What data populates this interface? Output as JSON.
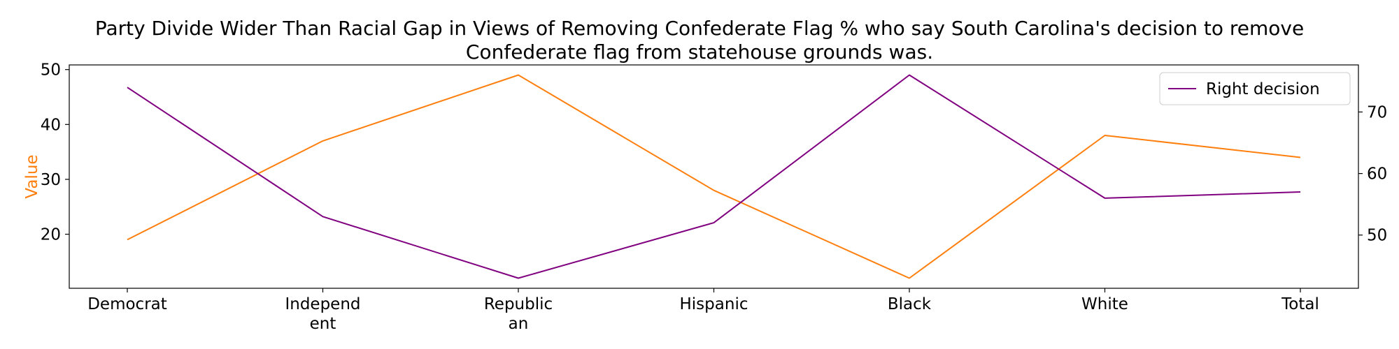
{
  "chart_data": {
    "type": "line",
    "title": "Party Divide Wider Than Racial Gap in Views of Removing Confederate Flag % who say South Carolina's decision to remove Confederate flag from statehouse grounds was.",
    "title_lines": [
      "Party Divide Wider Than Racial Gap in Views of Removing Confederate Flag % who say South Carolina's decision to remove",
      "Confederate flag from statehouse grounds was."
    ],
    "categories": [
      "Democrat",
      "Independent",
      "Republican",
      "Hispanic",
      "Black",
      "White",
      "Total"
    ],
    "category_label_lines": [
      [
        "Democrat"
      ],
      [
        "Independ",
        "ent"
      ],
      [
        "Republic",
        "an"
      ],
      [
        "Hispanic"
      ],
      [
        "Black"
      ],
      [
        "White"
      ],
      [
        "Total"
      ]
    ],
    "ylabel": "Value",
    "ylabel_color": "#ff7f0e",
    "series": [
      {
        "name": "",
        "axis": "left",
        "color": "#ff7f0e",
        "values": [
          19,
          37,
          49,
          28,
          12,
          38,
          34
        ]
      },
      {
        "name": "Right decision",
        "axis": "right",
        "color": "#800080",
        "values": [
          74,
          53,
          43,
          52,
          76,
          56,
          57
        ]
      }
    ],
    "left_axis": {
      "ylim": [
        10.15,
        50.85
      ],
      "ticks": [
        20,
        30,
        40,
        50
      ]
    },
    "right_axis": {
      "ylim": [
        41.35,
        77.65
      ],
      "ticks": [
        50,
        60,
        70
      ]
    },
    "grid": false,
    "legend": {
      "placement": "upper-right",
      "entries": [
        "Right decision"
      ]
    }
  }
}
